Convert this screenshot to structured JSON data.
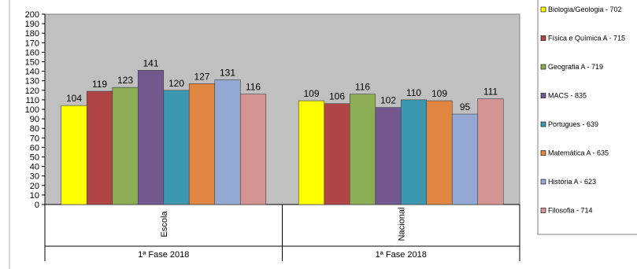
{
  "chart_data": {
    "type": "bar",
    "categories": [
      "Escola",
      "Nacional"
    ],
    "group_label": "1ª Fase 2018",
    "ylim": [
      0,
      200
    ],
    "ytick_step": 10,
    "grid": false,
    "legend_position": "right",
    "plot_background": "#c0c0c0",
    "series": [
      {
        "name": "Biologia/Geologia - 702",
        "color": "#ffff00",
        "values": [
          104,
          109
        ]
      },
      {
        "name": "Física e Química A - 715",
        "color": "#b04545",
        "values": [
          119,
          106
        ]
      },
      {
        "name": "Geografia A - 719",
        "color": "#8cac56",
        "values": [
          123,
          116
        ]
      },
      {
        "name": "MACS - 835",
        "color": "#72588e",
        "values": [
          141,
          102
        ]
      },
      {
        "name": "Portugues - 639",
        "color": "#3c98b0",
        "values": [
          120,
          110
        ]
      },
      {
        "name": "Matemática A - 635",
        "color": "#e08640",
        "values": [
          127,
          109
        ]
      },
      {
        "name": "História A - 623",
        "color": "#94a8d4",
        "values": [
          131,
          95
        ]
      },
      {
        "name": "Filosofia - 714",
        "color": "#d49494",
        "values": [
          116,
          111
        ]
      }
    ]
  }
}
